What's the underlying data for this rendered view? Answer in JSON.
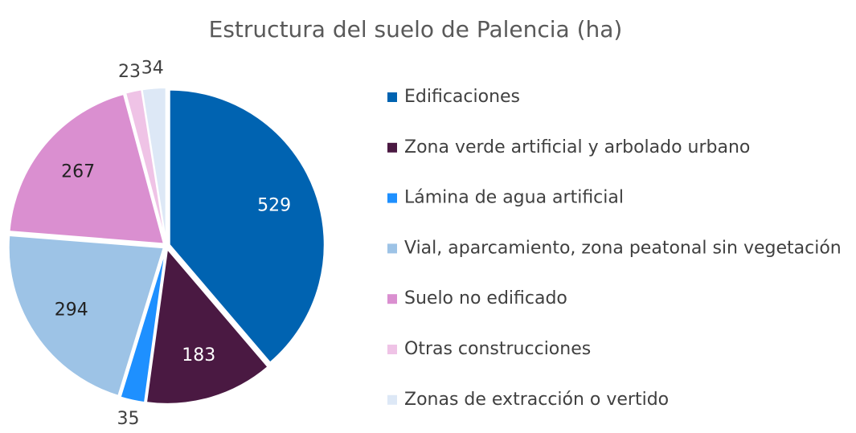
{
  "chart_data": {
    "type": "pie",
    "title": "Estructura del suelo de Palencia (ha)",
    "categories": [
      "Edificaciones",
      "Zona verde artificial y arbolado urbano",
      "Lámina de agua artificial",
      "Vial, aparcamiento, zona peatonal sin vegetación",
      "Suelo no edificado",
      "Otras construcciones",
      "Zonas de extracción o vertido"
    ],
    "values": [
      529,
      183,
      35,
      294,
      267,
      23,
      34
    ],
    "colors": [
      "#0063b1",
      "#4a1942",
      "#1e90ff",
      "#9dc3e6",
      "#da8fd0",
      "#efc3e6",
      "#dde8f6"
    ],
    "legend": "right"
  }
}
